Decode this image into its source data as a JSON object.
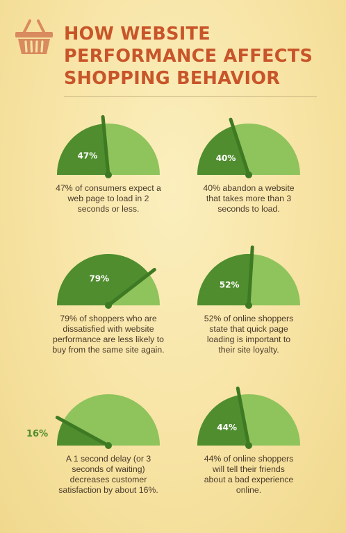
{
  "title": {
    "line1": "HOW WEBSITE",
    "line2": "PERFORMANCE AFFECTS",
    "line3": "SHOPPING BEHAVIOR"
  },
  "icon": "shopping-basket-icon",
  "colors": {
    "title": "#c8552a",
    "gauge_dark": "#4f8d2e",
    "gauge_light": "#8fc35c",
    "needle": "#3e7a24",
    "text": "#4a3a2a"
  },
  "stats": [
    {
      "percent": 47,
      "label": "47%",
      "caption": [
        "47% of consumers expect a",
        "web page to load in 2",
        "seconds or less."
      ]
    },
    {
      "percent": 40,
      "label": "40%",
      "caption": [
        "40% abandon a website",
        "that takes more than 3",
        "seconds to load."
      ]
    },
    {
      "percent": 79,
      "label": "79%",
      "caption": [
        "79% of shoppers who are",
        "dissatisfied with website",
        "performance are less likely to",
        "buy from the same site again."
      ]
    },
    {
      "percent": 52,
      "label": "52%",
      "caption": [
        "52% of online shoppers",
        "state that quick page",
        "loading is important to",
        "their site loyalty."
      ]
    },
    {
      "percent": 16,
      "label": "16%",
      "caption": [
        "A 1 second delay (or 3",
        "seconds of waiting)",
        "decreases customer",
        "satisfaction by about 16%."
      ]
    },
    {
      "percent": 44,
      "label": "44%",
      "caption": [
        "44% of online shoppers",
        "will tell their friends",
        "about a bad experience",
        "online."
      ]
    }
  ]
}
